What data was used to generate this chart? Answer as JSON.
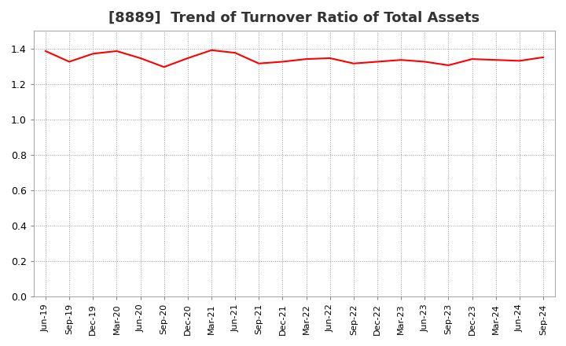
{
  "title": "[8889]  Trend of Turnover Ratio of Total Assets",
  "line_color": "#ff0000",
  "line_width": 1.5,
  "background_color": "#ffffff",
  "grid_color": "#999999",
  "ylim": [
    0.0,
    1.5
  ],
  "yticks": [
    0.0,
    0.2,
    0.4,
    0.6,
    0.8,
    1.0,
    1.2,
    1.4
  ],
  "x_labels": [
    "Jun-19",
    "Sep-19",
    "Dec-19",
    "Mar-20",
    "Jun-20",
    "Sep-20",
    "Dec-20",
    "Mar-21",
    "Jun-21",
    "Sep-21",
    "Dec-21",
    "Mar-22",
    "Jun-22",
    "Sep-22",
    "Dec-22",
    "Mar-23",
    "Jun-23",
    "Sep-23",
    "Dec-23",
    "Mar-24",
    "Jun-24",
    "Sep-24"
  ],
  "y_values": [
    1.385,
    1.325,
    1.37,
    1.385,
    1.345,
    1.295,
    1.345,
    1.39,
    1.375,
    1.315,
    1.325,
    1.34,
    1.345,
    1.315,
    1.325,
    1.335,
    1.325,
    1.305,
    1.34,
    1.335,
    1.33,
    1.35
  ],
  "title_fontsize": 13,
  "tick_fontsize": 8,
  "ytick_fontsize": 9
}
